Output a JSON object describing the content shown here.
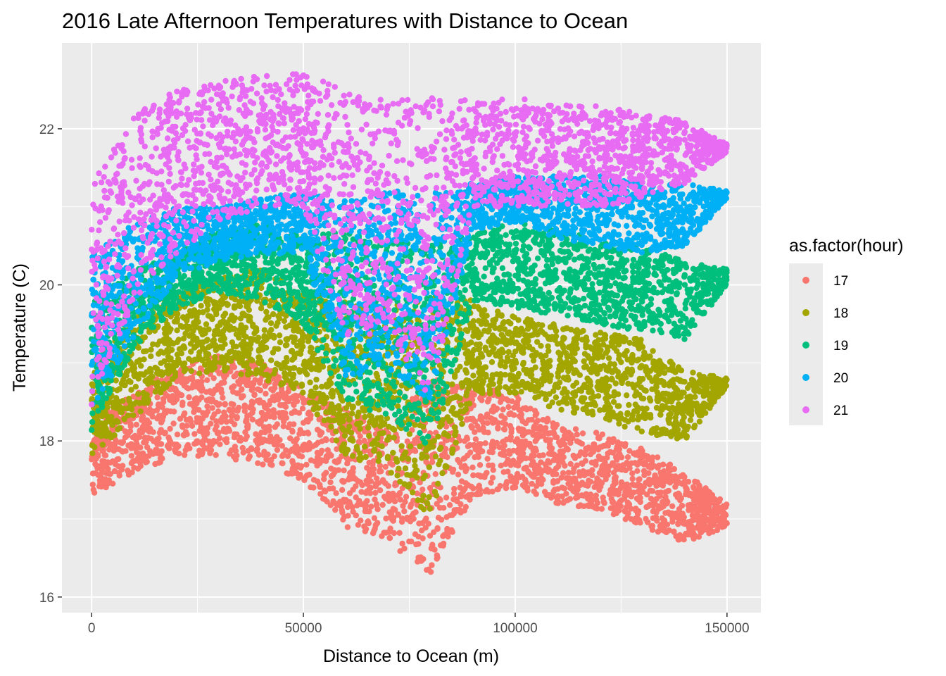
{
  "chart_data": {
    "type": "scatter",
    "title": "2016 Late Afternoon Temperatures with Distance to Ocean",
    "xlabel": "Distance to Ocean (m)",
    "ylabel": "Temperature (C)",
    "xlim": [
      -7000,
      158000
    ],
    "ylim": [
      15.8,
      23.1
    ],
    "x_ticks": [
      0,
      50000,
      100000,
      150000
    ],
    "x_tick_labels": [
      "0",
      "50000",
      "100000",
      "150000"
    ],
    "y_ticks": [
      16,
      18,
      20,
      22
    ],
    "y_tick_labels": [
      "16",
      "18",
      "20",
      "22"
    ],
    "grid": true,
    "legend": {
      "title": "as.factor(hour)",
      "placement": "right",
      "labels": [
        "17",
        "18",
        "19",
        "20",
        "21"
      ]
    },
    "series": [
      {
        "name": "17",
        "color": "#F8766D",
        "x": [
          0,
          10000,
          20000,
          30000,
          40000,
          50000,
          60000,
          70000,
          80000,
          90000,
          100000,
          110000,
          120000,
          130000,
          140000,
          150000
        ],
        "y_low": [
          17.3,
          17.6,
          17.8,
          17.8,
          17.7,
          17.5,
          16.9,
          16.7,
          16.3,
          17.3,
          17.4,
          17.2,
          17.1,
          16.9,
          16.7,
          16.9
        ],
        "y_high": [
          18.3,
          18.6,
          19.0,
          19.1,
          19.0,
          18.7,
          18.4,
          18.2,
          18.8,
          18.7,
          18.6,
          18.2,
          18.1,
          17.9,
          17.6,
          17.2
        ]
      },
      {
        "name": "18",
        "color": "#A3A500",
        "x": [
          0,
          10000,
          20000,
          30000,
          40000,
          50000,
          60000,
          70000,
          80000,
          90000,
          100000,
          110000,
          120000,
          130000,
          140000,
          150000
        ],
        "y_low": [
          17.8,
          18.3,
          18.8,
          18.9,
          18.8,
          18.6,
          17.8,
          17.6,
          17.0,
          18.6,
          18.6,
          18.4,
          18.3,
          18.1,
          18.0,
          18.7
        ],
        "y_high": [
          19.0,
          19.6,
          19.9,
          20.1,
          20.2,
          19.9,
          19.8,
          19.7,
          19.9,
          19.8,
          19.6,
          19.5,
          19.4,
          19.3,
          18.9,
          18.8
        ]
      },
      {
        "name": "19",
        "color": "#00BF7D",
        "x": [
          0,
          10000,
          20000,
          30000,
          40000,
          50000,
          60000,
          70000,
          80000,
          90000,
          100000,
          110000,
          120000,
          130000,
          140000,
          150000
        ],
        "y_low": [
          18.1,
          19.2,
          19.7,
          19.9,
          19.8,
          19.5,
          18.5,
          18.3,
          17.9,
          19.8,
          19.7,
          19.6,
          19.5,
          19.4,
          19.3,
          20.0
        ],
        "y_high": [
          19.8,
          20.2,
          20.4,
          20.7,
          20.8,
          20.6,
          20.7,
          20.6,
          20.5,
          20.7,
          20.8,
          20.7,
          20.6,
          20.5,
          20.3,
          20.2
        ]
      },
      {
        "name": "20",
        "color": "#00B0F6",
        "x": [
          0,
          10000,
          20000,
          30000,
          40000,
          50000,
          60000,
          70000,
          80000,
          90000,
          100000,
          110000,
          120000,
          130000,
          140000,
          150000
        ],
        "y_low": [
          18.4,
          19.3,
          20.1,
          20.3,
          20.4,
          20.4,
          18.8,
          18.9,
          18.5,
          20.7,
          20.8,
          20.6,
          20.5,
          20.4,
          20.5,
          21.1
        ],
        "y_high": [
          20.4,
          20.8,
          21.0,
          21.0,
          21.1,
          21.2,
          21.1,
          21.2,
          21.2,
          21.3,
          21.4,
          21.4,
          21.4,
          21.3,
          21.3,
          21.2
        ]
      },
      {
        "name": "21",
        "color": "#E76BF3",
        "x": [
          0,
          10000,
          20000,
          30000,
          40000,
          50000,
          60000,
          70000,
          80000,
          90000,
          100000,
          110000,
          120000,
          130000,
          140000,
          150000
        ],
        "y_low": [
          18.4,
          19.8,
          20.4,
          20.8,
          21.0,
          21.0,
          19.3,
          19.4,
          18.5,
          21.0,
          21.0,
          21.0,
          21.0,
          21.1,
          21.3,
          21.7
        ],
        "y_high": [
          21.3,
          22.2,
          22.5,
          22.6,
          22.7,
          22.7,
          22.5,
          22.4,
          22.4,
          22.4,
          22.4,
          22.3,
          22.3,
          22.2,
          22.1,
          21.8
        ]
      }
    ]
  }
}
